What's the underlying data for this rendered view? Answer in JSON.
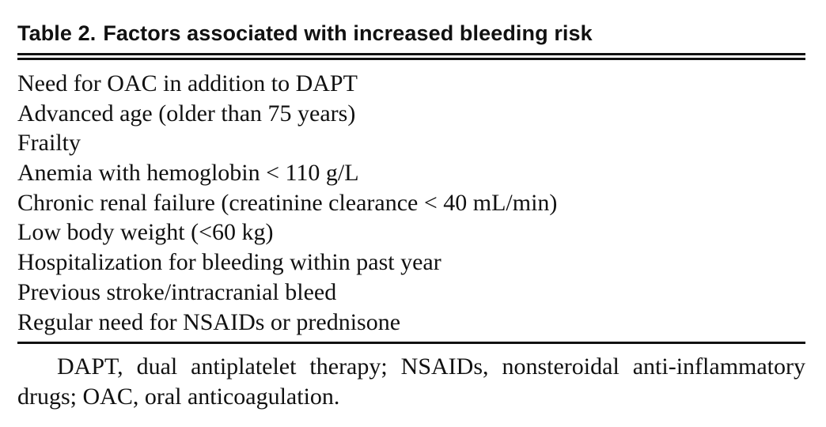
{
  "table": {
    "label": "Table 2.",
    "title": "Factors associated with increased bleeding risk",
    "rows": [
      "Need for OAC in addition to DAPT",
      "Advanced age (older than 75 years)",
      "Frailty",
      "Anemia with hemoglobin < 110 g/L",
      "Chronic renal failure (creatinine clearance < 40 mL/min)",
      "Low body weight (<60 kg)",
      "Hospitalization for bleeding within past year",
      "Previous stroke/intracranial bleed",
      "Regular need for NSAIDs or prednisone"
    ],
    "footnote": "DAPT, dual antiplatelet therapy; NSAIDs, nonsteroidal anti-inflammatory drugs; OAC, oral anticoagulation."
  }
}
